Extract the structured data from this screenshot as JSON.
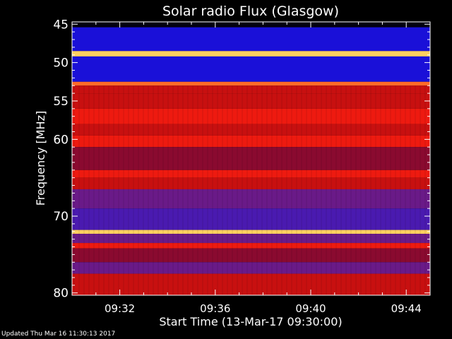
{
  "chart_data": {
    "type": "heatmap",
    "title": "Solar radio Flux (Glasgow)",
    "xlabel": "Start Time (13-Mar-17 09:30:00)",
    "ylabel": "Frequency [MHz]",
    "x_ticks": [
      "09:32",
      "09:36",
      "09:40",
      "09:44"
    ],
    "x_tick_minutes": [
      2,
      6,
      10,
      14
    ],
    "xlim_minutes": [
      0,
      15
    ],
    "y_ticks": [
      45,
      50,
      55,
      60,
      70,
      80
    ],
    "ylim_mhz": [
      44.7,
      80.3
    ],
    "y_axis_inverted": true,
    "frequency_bands": [
      {
        "from": 44.7,
        "to": 45.4,
        "level": "black"
      },
      {
        "from": 45.4,
        "to": 48.5,
        "level": "blue"
      },
      {
        "from": 48.5,
        "to": 49.2,
        "level": "hot"
      },
      {
        "from": 49.2,
        "to": 52.5,
        "level": "blue"
      },
      {
        "from": 52.5,
        "to": 53.0,
        "level": "orange"
      },
      {
        "from": 53.0,
        "to": 54.0,
        "level": "red"
      },
      {
        "from": 54.0,
        "to": 56.0,
        "level": "red"
      },
      {
        "from": 56.0,
        "to": 58.0,
        "level": "red-bright"
      },
      {
        "from": 58.0,
        "to": 59.5,
        "level": "red"
      },
      {
        "from": 59.5,
        "to": 61.0,
        "level": "red-bright"
      },
      {
        "from": 61.0,
        "to": 64.0,
        "level": "red-dark"
      },
      {
        "from": 64.0,
        "to": 65.0,
        "level": "red-bright"
      },
      {
        "from": 65.0,
        "to": 66.5,
        "level": "red"
      },
      {
        "from": 66.5,
        "to": 69.0,
        "level": "purple"
      },
      {
        "from": 69.0,
        "to": 71.8,
        "level": "blue-purple"
      },
      {
        "from": 71.8,
        "to": 72.3,
        "level": "hot"
      },
      {
        "from": 72.3,
        "to": 73.5,
        "level": "purple"
      },
      {
        "from": 73.5,
        "to": 74.2,
        "level": "red-bright"
      },
      {
        "from": 74.2,
        "to": 76.0,
        "level": "red-dark"
      },
      {
        "from": 76.0,
        "to": 77.5,
        "level": "purple"
      },
      {
        "from": 77.5,
        "to": 80.3,
        "level": "red"
      }
    ],
    "colors": {
      "black": "#020010",
      "blue": "#1a10d8",
      "hot": "#ffd060",
      "orange": "#ff6a28",
      "red": "#c81010",
      "red-bright": "#ee1a10",
      "red-dark": "#8a0a30",
      "purple": "#6a1a88",
      "blue-purple": "#4a1ab0"
    }
  },
  "footer": {
    "updated": "Updated Thu Mar 16 11:30:13 2017"
  }
}
